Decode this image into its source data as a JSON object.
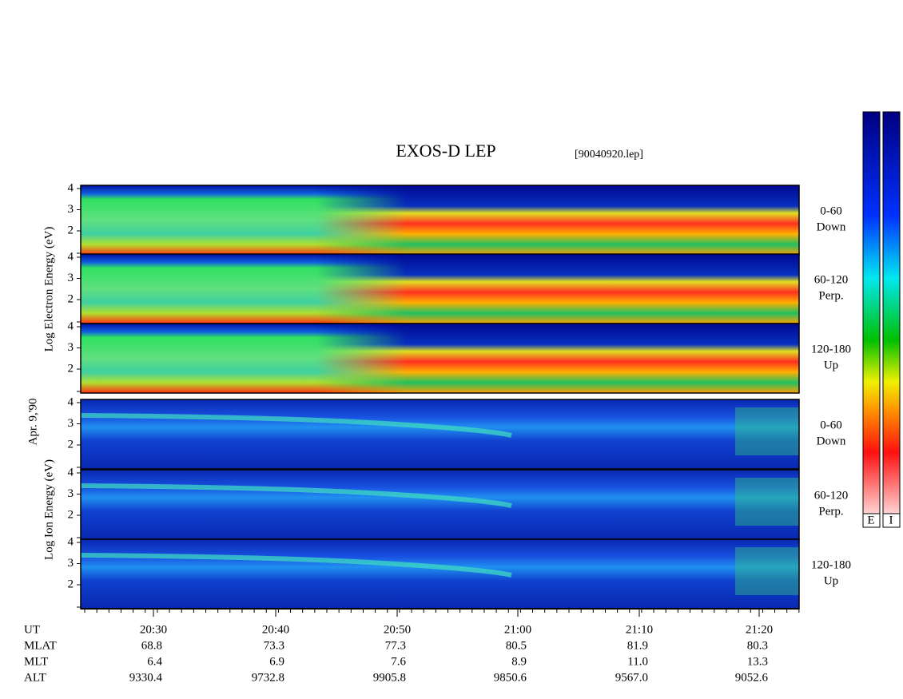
{
  "title": "EXOS-D LEP",
  "file": "[90040920.lep]",
  "date_label": "Apr. 9,'90",
  "electron_axis_label": "Log   Electron   Energy (eV)",
  "ion_axis_label": "Log   Ion   Energy (eV)",
  "panels": [
    {
      "angle": "0-60",
      "direction": "Down",
      "yticks": [
        2,
        3,
        4
      ]
    },
    {
      "angle": "60-120",
      "direction": "Perp.",
      "yticks": [
        2,
        3,
        4
      ]
    },
    {
      "angle": "120-180",
      "direction": "Up",
      "yticks": [
        2,
        3,
        4
      ]
    },
    {
      "angle": "0-60",
      "direction": "Down",
      "yticks": [
        2,
        3,
        4
      ]
    },
    {
      "angle": "60-120",
      "direction": "Perp.",
      "yticks": [
        2,
        3,
        4
      ]
    },
    {
      "angle": "120-180",
      "direction": "Up",
      "yticks": [
        2,
        3,
        4
      ]
    }
  ],
  "row_labels": [
    "UT",
    "MLAT",
    "MLT",
    "ALT"
  ],
  "columns": [
    [
      "20:30",
      "68.8",
      "6.4",
      "9330.4"
    ],
    [
      "20:40",
      "73.3",
      "6.9",
      "9732.8"
    ],
    [
      "20:50",
      "77.3",
      "7.6",
      "9905.8"
    ],
    [
      "21:00",
      "80.5",
      "8.9",
      "9850.6"
    ],
    [
      "21:10",
      "81.9",
      "11.0",
      "9567.0"
    ],
    [
      "21:20",
      "80.3",
      "13.3",
      "9052.6"
    ]
  ],
  "colorbar_labels": [
    "E",
    "I"
  ]
}
